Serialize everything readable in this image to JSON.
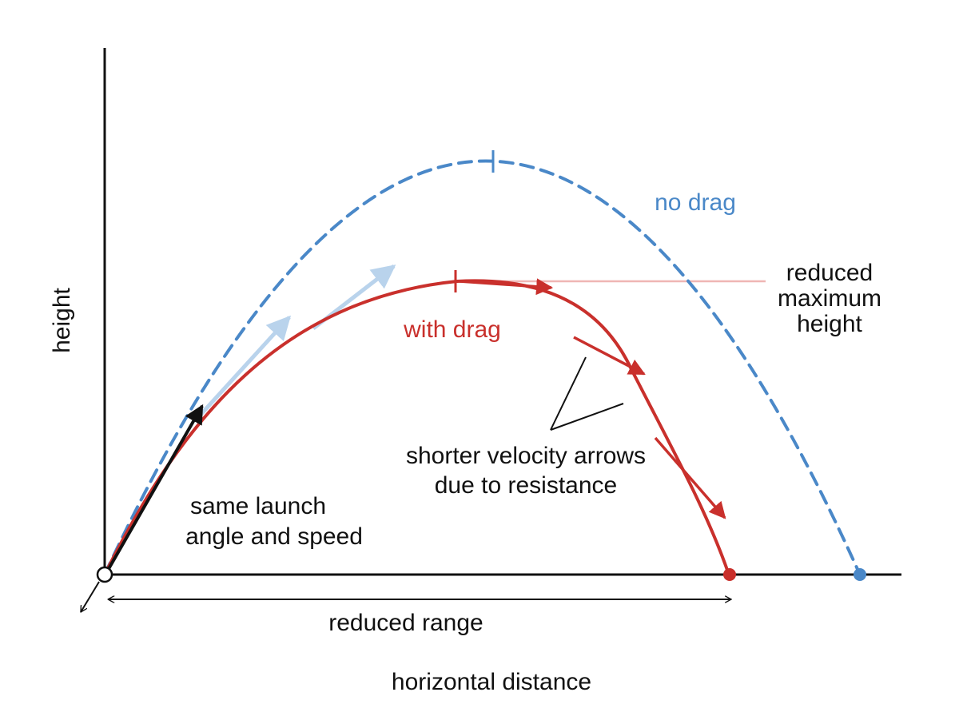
{
  "axes": {
    "x_label": "horizontal distance",
    "y_label": "height"
  },
  "curves": {
    "no_drag": {
      "label": "no drag",
      "color": "#4a88c8",
      "style": "dashed"
    },
    "with_drag": {
      "label": "with drag",
      "color": "#c9302c",
      "style": "solid"
    }
  },
  "annotations": {
    "launch": [
      "same launch",
      "angle and speed"
    ],
    "velocity": [
      "shorter velocity arrows",
      "due to resistance"
    ],
    "max_height": [
      "reduced",
      "maximum",
      "height"
    ],
    "range": "reduced range"
  },
  "colors": {
    "axis": "#111111",
    "velocity_no_drag": "#b9d3ec",
    "max_height_line": "#efb6b4"
  }
}
